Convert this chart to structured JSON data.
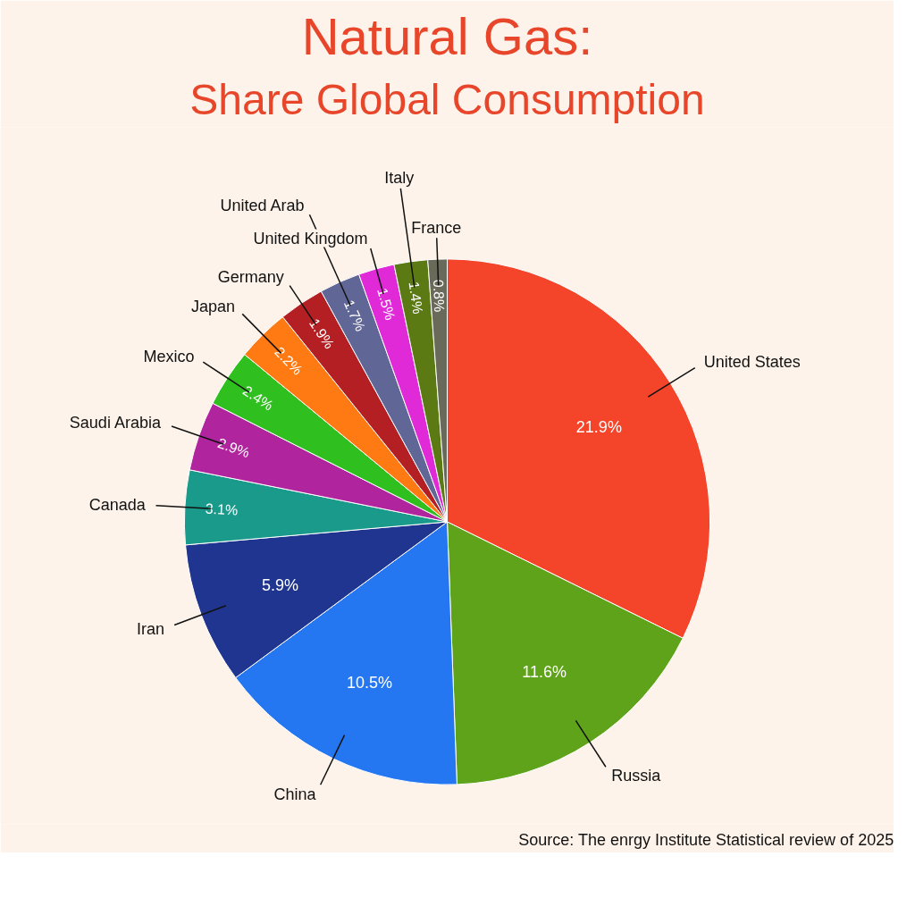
{
  "chart_data": {
    "type": "pie",
    "title": "Natural Gas:",
    "subtitle": "Share Global Consumption",
    "categories": [
      "United States",
      "Russia",
      "China",
      "Iran",
      "Canada",
      "Saudi Arabia",
      "Mexico",
      "Japan",
      "Germany",
      "United Arab",
      "United Kingdom",
      "Italy",
      "France"
    ],
    "values": [
      21.9,
      11.6,
      10.5,
      5.9,
      3.1,
      2.9,
      2.4,
      2.2,
      1.9,
      1.7,
      1.5,
      1.4,
      0.8
    ],
    "value_labels": [
      "21.9%",
      "11.6%",
      "10.5%",
      "5.9%",
      "3.1%",
      "2.9%",
      "2.4%",
      "2.2%",
      "1.9%",
      "1.7%",
      "1.5%",
      "1.4%",
      "0.8%"
    ],
    "colors": [
      "#f4452b",
      "#5ea31a",
      "#2477f0",
      "#1f3590",
      "#1a9a8a",
      "#b0249e",
      "#2fbf1f",
      "#ff7a12",
      "#b31f22",
      "#606696",
      "#e02ad8",
      "#5c7a14",
      "#6a6a5a"
    ],
    "annotations": [
      "Source: The enrgy Institute Statistical review of 2025"
    ]
  }
}
